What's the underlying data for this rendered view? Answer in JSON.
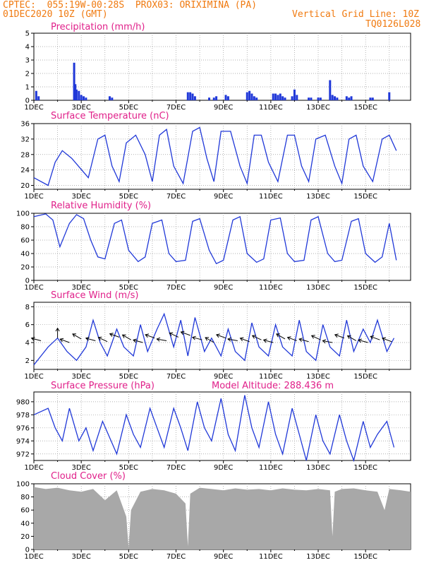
{
  "header": {
    "line1": "CPTEC:  055:19W-00:28S  PROX03: ORIXIMINA (PA)",
    "line2_left": "01DEC2020 10Z (GMT)",
    "line2_right": "Vertical Grid Line: 10Z",
    "line3_right": "TQ0126L028"
  },
  "colors": {
    "line": "#2038d8",
    "title": "#e0208a",
    "header": "#f07a10",
    "cloud": "#a8a8a8",
    "arrow": "#000000"
  },
  "chart_data": [
    {
      "type": "bar",
      "title": "Precipitation (mm/h)",
      "ylim": [
        0,
        5
      ],
      "yticks": [
        0,
        1,
        2,
        3,
        4,
        5
      ],
      "xticks": [
        "1DEC",
        "3DEC",
        "5DEC",
        "7DEC",
        "9DEC",
        "11DEC",
        "13DEC",
        "15DEC"
      ],
      "x": [
        0.1,
        0.2,
        1.7,
        1.75,
        1.8,
        1.9,
        2.0,
        2.1,
        2.2,
        3.2,
        3.3,
        6.5,
        6.6,
        6.7,
        6.8,
        7.4,
        7.6,
        7.7,
        8.1,
        8.2,
        9.0,
        9.1,
        9.2,
        9.3,
        9.4,
        10.1,
        10.2,
        10.3,
        10.4,
        10.5,
        10.6,
        10.9,
        11.0,
        11.1,
        11.6,
        11.7,
        12.0,
        12.1,
        12.5,
        12.6,
        12.7,
        12.8,
        13.2,
        13.3,
        13.4,
        14.2,
        14.3,
        15.0
      ],
      "values": [
        0.7,
        0.3,
        2.8,
        1.2,
        0.8,
        0.7,
        0.4,
        0.3,
        0.2,
        0.3,
        0.2,
        0.6,
        0.6,
        0.5,
        0.3,
        0.2,
        0.2,
        0.3,
        0.4,
        0.3,
        0.6,
        0.7,
        0.5,
        0.3,
        0.2,
        0.5,
        0.5,
        0.4,
        0.5,
        0.3,
        0.2,
        0.3,
        0.8,
        0.4,
        0.2,
        0.2,
        0.2,
        0.2,
        1.5,
        0.4,
        0.3,
        0.2,
        0.3,
        0.2,
        0.3,
        0.2,
        0.2,
        0.6
      ]
    },
    {
      "type": "line",
      "title": "Surface Temperature (nC)",
      "ylim": [
        19,
        36
      ],
      "yticks": [
        20,
        24,
        28,
        32,
        36
      ],
      "xticks": [
        "1DEC",
        "3DEC",
        "5DEC",
        "7DEC",
        "9DEC",
        "11DEC",
        "13DEC",
        "15DEC"
      ],
      "series": [
        {
          "x": [
            0,
            0.6,
            0.9,
            1.2,
            1.6,
            2.3,
            2.7,
            3.0,
            3.3,
            3.6,
            3.9,
            4.3,
            4.7,
            5.0,
            5.3,
            5.6,
            5.9,
            6.3,
            6.7,
            7.0,
            7.3,
            7.6,
            7.9,
            8.3,
            8.7,
            9.0,
            9.3,
            9.6,
            9.9,
            10.3,
            10.7,
            11.0,
            11.3,
            11.6,
            11.9,
            12.3,
            12.7,
            13.0,
            13.3,
            13.6,
            13.9,
            14.3,
            14.7,
            15.0,
            15.3
          ],
          "values": [
            22,
            20,
            26,
            29,
            27,
            22,
            32,
            33,
            25,
            21,
            31,
            33,
            28,
            21,
            33,
            34.5,
            25,
            20.5,
            34,
            35,
            27,
            21,
            34,
            34,
            25,
            20.5,
            33,
            33,
            26,
            21,
            33,
            33,
            25,
            21,
            32,
            33,
            25,
            20.5,
            32,
            33,
            25,
            21,
            32,
            33,
            29
          ]
        }
      ]
    },
    {
      "type": "line",
      "title": "Relative Humidity (%)",
      "ylim": [
        0,
        100
      ],
      "yticks": [
        0,
        20,
        40,
        60,
        80,
        100
      ],
      "xticks": [
        "1DEC",
        "3DEC",
        "5DEC",
        "7DEC",
        "9DEC",
        "11DEC",
        "13DEC",
        "15DEC"
      ],
      "series": [
        {
          "x": [
            0,
            0.5,
            0.8,
            1.1,
            1.5,
            1.8,
            2.1,
            2.4,
            2.7,
            3.0,
            3.4,
            3.7,
            4.0,
            4.4,
            4.7,
            5.0,
            5.4,
            5.7,
            6.0,
            6.4,
            6.7,
            7.0,
            7.4,
            7.7,
            8.0,
            8.4,
            8.7,
            9.0,
            9.4,
            9.7,
            10.0,
            10.4,
            10.7,
            11.0,
            11.4,
            11.7,
            12.0,
            12.4,
            12.7,
            13.0,
            13.4,
            13.7,
            14.0,
            14.4,
            14.7,
            15.0,
            15.3
          ],
          "values": [
            95,
            99,
            90,
            50,
            85,
            98,
            92,
            60,
            35,
            32,
            85,
            90,
            45,
            28,
            35,
            85,
            90,
            40,
            28,
            30,
            88,
            92,
            45,
            25,
            30,
            90,
            95,
            40,
            27,
            32,
            90,
            93,
            40,
            28,
            30,
            90,
            95,
            40,
            28,
            30,
            88,
            92,
            40,
            27,
            35,
            85,
            30
          ]
        }
      ]
    },
    {
      "type": "line",
      "title": "Surface Wind (m/s)",
      "ylim": [
        1,
        8.5
      ],
      "yticks": [
        2,
        4,
        6,
        8
      ],
      "xticks": [
        "1DEC",
        "3DEC",
        "5DEC",
        "7DEC",
        "9DEC",
        "11DEC",
        "13DEC",
        "15DEC"
      ],
      "series": [
        {
          "x": [
            0,
            0.3,
            0.6,
            1.0,
            1.4,
            1.8,
            2.2,
            2.5,
            2.8,
            3.1,
            3.5,
            3.8,
            4.2,
            4.5,
            4.8,
            5.2,
            5.5,
            5.9,
            6.2,
            6.5,
            6.8,
            7.2,
            7.5,
            7.9,
            8.2,
            8.5,
            8.9,
            9.2,
            9.5,
            9.9,
            10.2,
            10.5,
            10.9,
            11.2,
            11.5,
            11.9,
            12.2,
            12.5,
            12.9,
            13.2,
            13.5,
            13.9,
            14.2,
            14.5,
            14.9,
            15.2
          ],
          "values": [
            1.5,
            2.5,
            3.5,
            4.5,
            3.0,
            2.0,
            3.5,
            6.5,
            4.0,
            2.5,
            5.5,
            3.5,
            2.5,
            6.0,
            3.0,
            5.5,
            7.2,
            3.5,
            6.5,
            2.5,
            6.8,
            3.0,
            4.5,
            2.5,
            5.5,
            3.0,
            2.0,
            6.2,
            3.5,
            2.5,
            6.0,
            3.5,
            2.5,
            6.5,
            3.0,
            2.0,
            6.0,
            3.5,
            2.5,
            6.5,
            3.0,
            5.5,
            4.0,
            6.5,
            3.0,
            4.5
          ]
        }
      ],
      "arrows": {
        "x": [
          0.3,
          1.0,
          1.5,
          2.0,
          2.6,
          3.1,
          3.6,
          4.1,
          4.6,
          5.1,
          5.6,
          6.1,
          6.6,
          7.1,
          7.6,
          8.1,
          8.6,
          9.1,
          9.6,
          10.1,
          10.6,
          11.1,
          11.6,
          12.1,
          12.6,
          13.1,
          13.6,
          14.1,
          14.6,
          15.1
        ],
        "y": [
          4.2,
          4.5,
          4.0,
          4.4,
          4.2,
          4.1,
          4.6,
          4.3,
          4.0,
          4.5,
          4.2,
          4.6,
          4.8,
          4.3,
          4.0,
          4.5,
          4.2,
          4.1,
          4.3,
          4.0,
          4.4,
          4.2,
          4.1,
          4.3,
          4.0,
          4.5,
          4.2,
          4.0,
          4.3,
          4.1
        ],
        "dir_deg": [
          165,
          90,
          160,
          150,
          165,
          155,
          160,
          150,
          165,
          160,
          170,
          155,
          160,
          165,
          150,
          160,
          170,
          160,
          155,
          165,
          150,
          160,
          165,
          155,
          170,
          160,
          150,
          165,
          160,
          160
        ]
      }
    },
    {
      "type": "line",
      "title": "Surface Pressure (hPa)",
      "subtitle": "Model Altitude: 288.436 m",
      "ylim": [
        971,
        981.5
      ],
      "yticks": [
        972,
        974,
        976,
        978,
        980
      ],
      "xticks": [
        "1DEC",
        "3DEC",
        "5DEC",
        "7DEC",
        "9DEC",
        "11DEC",
        "13DEC",
        "15DEC"
      ],
      "series": [
        {
          "x": [
            0,
            0.3,
            0.6,
            0.9,
            1.2,
            1.5,
            1.9,
            2.2,
            2.5,
            2.9,
            3.2,
            3.5,
            3.9,
            4.2,
            4.5,
            4.9,
            5.2,
            5.5,
            5.9,
            6.2,
            6.5,
            6.9,
            7.2,
            7.5,
            7.9,
            8.2,
            8.5,
            8.9,
            9.2,
            9.5,
            9.9,
            10.2,
            10.5,
            10.9,
            11.2,
            11.5,
            11.9,
            12.2,
            12.5,
            12.9,
            13.2,
            13.5,
            13.9,
            14.2,
            14.5,
            14.9,
            15.2
          ],
          "values": [
            978,
            978.5,
            979,
            976,
            974,
            979,
            974,
            976,
            972.5,
            977,
            974.5,
            972,
            978,
            975,
            973,
            979,
            976,
            973,
            979,
            976,
            972.5,
            980,
            976,
            974,
            980.5,
            975,
            972.5,
            981,
            976,
            973,
            980,
            975,
            972,
            979,
            975,
            971,
            978,
            974,
            972,
            978,
            974,
            971,
            977,
            973,
            975,
            977,
            973
          ]
        }
      ]
    },
    {
      "type": "area",
      "title": "Cloud Cover (%)",
      "ylim": [
        0,
        100
      ],
      "yticks": [
        0,
        20,
        40,
        60,
        80,
        100
      ],
      "xticks": [
        "1DEC",
        "3DEC",
        "5DEC",
        "7DEC",
        "9DEC",
        "11DEC",
        "13DEC",
        "15DEC"
      ],
      "series": [
        {
          "x": [
            0,
            0.5,
            1.0,
            1.5,
            2.0,
            2.5,
            3.0,
            3.5,
            3.9,
            4.0,
            4.1,
            4.5,
            5.0,
            5.5,
            6.0,
            6.4,
            6.5,
            6.6,
            7.0,
            7.5,
            8.0,
            8.5,
            9.0,
            9.5,
            10.0,
            10.5,
            11.0,
            11.5,
            12.0,
            12.5,
            12.6,
            12.7,
            13.0,
            13.5,
            14.0,
            14.5,
            14.8,
            15.0,
            15.5,
            15.9
          ],
          "values": [
            95,
            92,
            94,
            90,
            88,
            92,
            75,
            90,
            50,
            3,
            60,
            88,
            92,
            90,
            85,
            70,
            5,
            85,
            94,
            92,
            90,
            93,
            91,
            92,
            90,
            93,
            91,
            90,
            92,
            90,
            20,
            88,
            92,
            93,
            90,
            88,
            60,
            92,
            90,
            88
          ]
        }
      ]
    }
  ]
}
